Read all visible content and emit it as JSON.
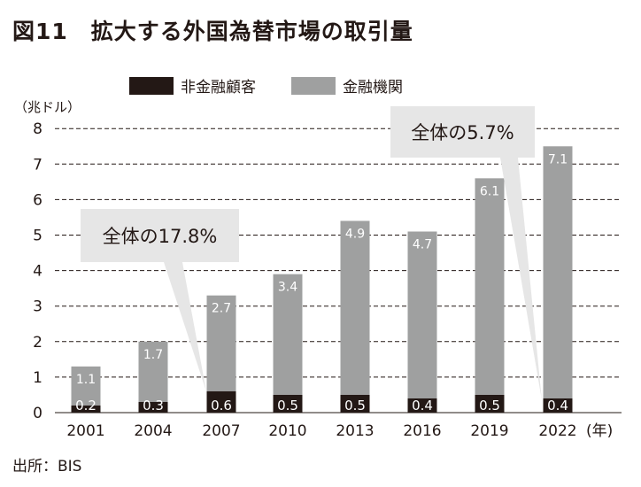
{
  "title": "図11　拡大する外国為替市場の取引量",
  "unit_label": "（兆ドル）",
  "source": "出所：BIS",
  "chart_data": {
    "type": "bar",
    "stacked": true,
    "categories": [
      "2001",
      "2004",
      "2007",
      "2010",
      "2013",
      "2016",
      "2019",
      "2022"
    ],
    "x_unit": "(年)",
    "series": [
      {
        "name": "非金融顧客",
        "color": "#231815",
        "values": [
          0.2,
          0.3,
          0.6,
          0.5,
          0.5,
          0.4,
          0.5,
          0.4
        ]
      },
      {
        "name": "金融機関",
        "color": "#9fa0a0",
        "values": [
          1.1,
          1.7,
          2.7,
          3.4,
          4.9,
          4.7,
          6.1,
          7.1
        ]
      }
    ],
    "ylabel": "兆ドル",
    "ylim": [
      0,
      8
    ],
    "yticks": [
      "0",
      "1",
      "2",
      "3",
      "4",
      "5",
      "6",
      "7",
      "8"
    ],
    "grid": "dashed horizontal",
    "legend_position": "top",
    "annotations": [
      {
        "text": "全体の17.8%",
        "points_to": "2007"
      },
      {
        "text": "全体の5.7%",
        "points_to": "2022"
      }
    ]
  }
}
